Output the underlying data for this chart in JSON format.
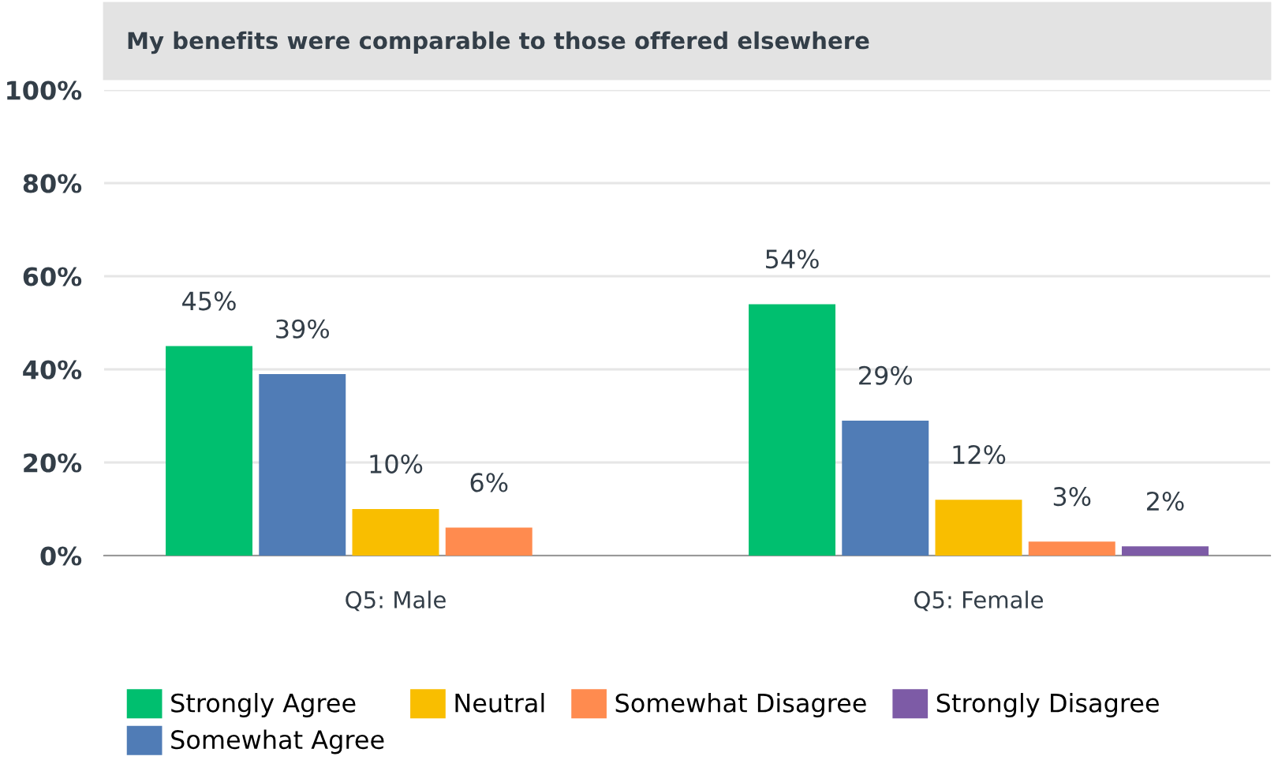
{
  "chart_data": {
    "type": "bar",
    "title": "My benefits were comparable to those offered elsewhere",
    "categories": [
      "Q5: Male",
      "Q5: Female"
    ],
    "series": [
      {
        "name": "Strongly Agree",
        "color": "#00bf6f",
        "values": [
          45,
          54
        ],
        "value_labels": [
          "45%",
          "54%"
        ]
      },
      {
        "name": "Somewhat Agree",
        "color": "#507cb6",
        "values": [
          39,
          29
        ],
        "value_labels": [
          "39%",
          "29%"
        ]
      },
      {
        "name": "Neutral",
        "color": "#f9be00",
        "values": [
          10,
          12
        ],
        "value_labels": [
          "10%",
          "12%"
        ]
      },
      {
        "name": "Somewhat Disagree",
        "color": "#ff8b4f",
        "values": [
          6,
          3
        ],
        "value_labels": [
          "6%",
          "3%"
        ]
      },
      {
        "name": "Strongly Disagree",
        "color": "#7d5ba6",
        "values": [
          null,
          2
        ],
        "value_labels": [
          null,
          "2%"
        ]
      }
    ],
    "ylim": [
      0,
      100
    ],
    "yticks": [
      {
        "value": 0,
        "label": "0%"
      },
      {
        "value": 20,
        "label": "20%"
      },
      {
        "value": 40,
        "label": "40%"
      },
      {
        "value": 60,
        "label": "60%"
      },
      {
        "value": 80,
        "label": "80%"
      },
      {
        "value": 100,
        "label": "100%"
      }
    ],
    "grid": "y",
    "legend": "bottom"
  }
}
